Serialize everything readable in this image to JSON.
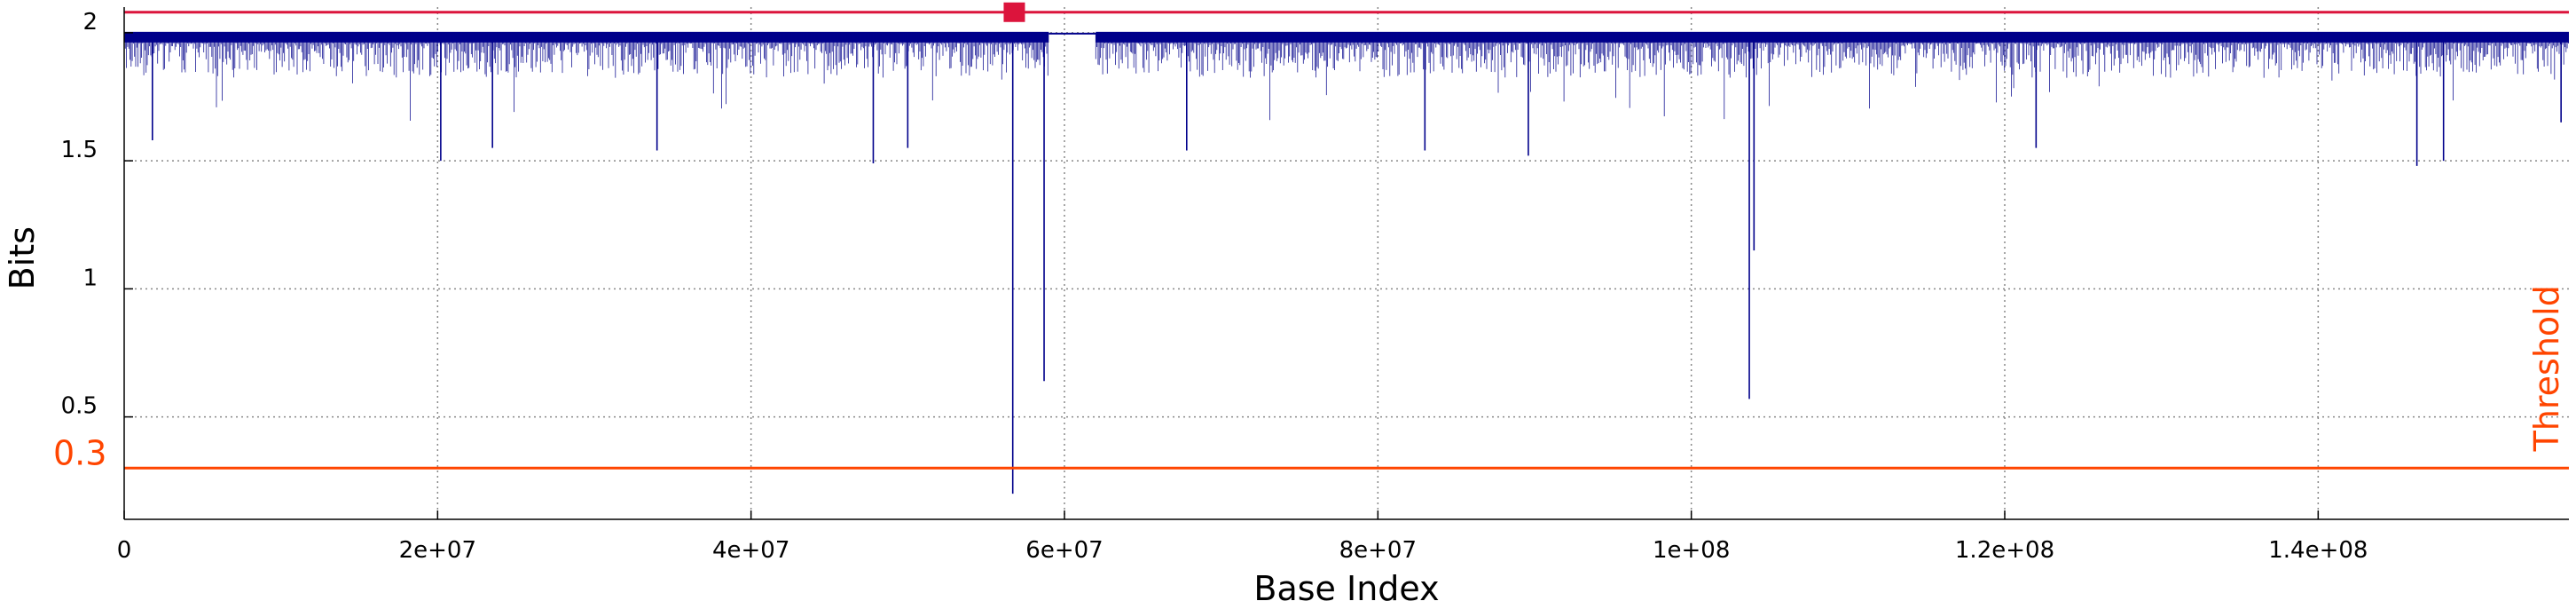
{
  "chart_data": {
    "type": "line",
    "title": "",
    "xlabel": "Base Index",
    "ylabel": "Bits",
    "xlim": [
      0,
      156000000
    ],
    "ylim": [
      0.1,
      2.1
    ],
    "grid": true,
    "x_ticks": [
      0,
      20000000,
      40000000,
      60000000,
      80000000,
      100000000,
      120000000,
      140000000
    ],
    "x_tick_labels": [
      "0",
      "2e+07",
      "4e+07",
      "6e+07",
      "8e+07",
      "1e+08",
      "1.2e+08",
      "1.4e+08"
    ],
    "y_ticks": [
      0.5,
      1,
      1.5,
      2
    ],
    "y_tick_labels": [
      "0.5",
      "1",
      "1.5",
      "2"
    ],
    "series": [
      {
        "name": "entropy",
        "color": "#00008b",
        "baseline": 2.0,
        "band_segments": [
          {
            "x0": 0,
            "x1": 59000000
          },
          {
            "x0": 62000000,
            "x1": 156000000
          }
        ],
        "notable_dips": [
          {
            "x": 1800000,
            "y": 1.58
          },
          {
            "x": 20200000,
            "y": 1.5
          },
          {
            "x": 23500000,
            "y": 1.55
          },
          {
            "x": 34000000,
            "y": 1.54
          },
          {
            "x": 47800000,
            "y": 1.49
          },
          {
            "x": 50000000,
            "y": 1.55
          },
          {
            "x": 56700000,
            "y": 0.2
          },
          {
            "x": 58700000,
            "y": 0.64
          },
          {
            "x": 67800000,
            "y": 1.54
          },
          {
            "x": 83000000,
            "y": 1.54
          },
          {
            "x": 89600000,
            "y": 1.52
          },
          {
            "x": 103700000,
            "y": 0.57
          },
          {
            "x": 104000000,
            "y": 1.15
          },
          {
            "x": 122000000,
            "y": 1.55
          },
          {
            "x": 146300000,
            "y": 1.48
          },
          {
            "x": 148000000,
            "y": 1.5
          },
          {
            "x": 155500000,
            "y": 1.65
          }
        ]
      }
    ],
    "reference_lines": [
      {
        "name": "top-line",
        "y": 2.08,
        "color": "#dc143c"
      },
      {
        "name": "threshold-line",
        "y": 0.3,
        "color": "#ff4500",
        "label": "Threshold",
        "value_label": "0.3"
      }
    ],
    "markers": [
      {
        "name": "red-square-marker",
        "x": 56800000,
        "y": 2.08,
        "color": "#dc143c"
      }
    ]
  }
}
